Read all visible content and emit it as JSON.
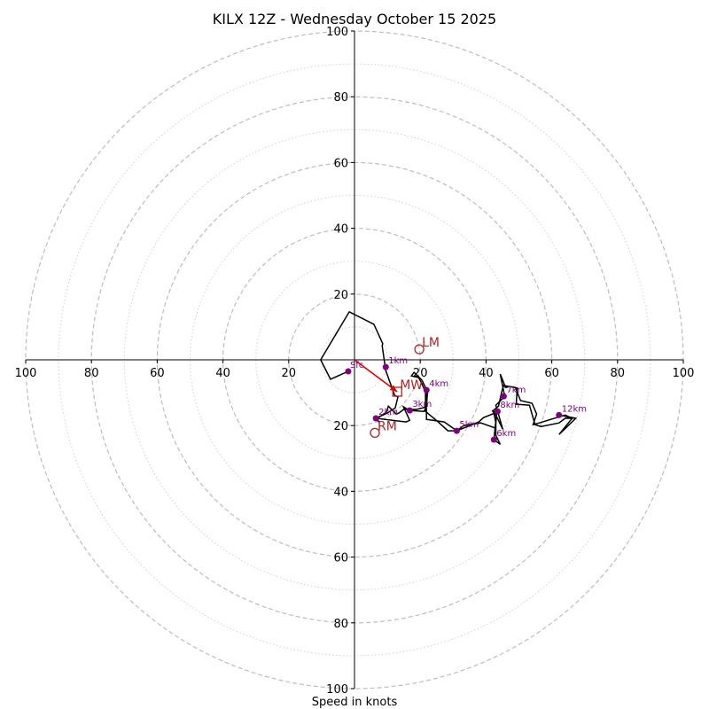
{
  "chart_data": {
    "type": "hodograph",
    "title": "KILX 12Z - Wednesday October 15 2025",
    "xlabel": "Speed in knots",
    "range": [
      -100,
      100
    ],
    "major_rings": [
      20,
      40,
      60,
      80,
      100
    ],
    "minor_rings": [
      10,
      30,
      50,
      70,
      90
    ],
    "x_ticks": [
      {
        "value": -100,
        "label": "100"
      },
      {
        "value": -80,
        "label": "80"
      },
      {
        "value": -60,
        "label": "60"
      },
      {
        "value": -40,
        "label": "40"
      },
      {
        "value": -20,
        "label": "20"
      },
      {
        "value": 20,
        "label": "20"
      },
      {
        "value": 40,
        "label": "40"
      },
      {
        "value": 60,
        "label": "60"
      },
      {
        "value": 80,
        "label": "80"
      },
      {
        "value": 100,
        "label": "100"
      }
    ],
    "y_ticks": [
      {
        "value": 100,
        "label": "100"
      },
      {
        "value": 80,
        "label": "80"
      },
      {
        "value": 60,
        "label": "60"
      },
      {
        "value": 40,
        "label": "40"
      },
      {
        "value": 20,
        "label": "20"
      },
      {
        "value": -20,
        "label": "20"
      },
      {
        "value": -40,
        "label": "40"
      },
      {
        "value": -60,
        "label": "60"
      },
      {
        "value": -80,
        "label": "80"
      },
      {
        "value": -100,
        "label": "100"
      }
    ],
    "hodograph_trace": [
      [
        -1.9,
        -3.5
      ],
      [
        -7.3,
        -5.9
      ],
      [
        -10.3,
        0
      ],
      [
        -1.6,
        14.6
      ],
      [
        5.9,
        10.8
      ],
      [
        8.6,
        4.9
      ],
      [
        8.4,
        4.3
      ],
      [
        9.5,
        -3.2
      ],
      [
        12.2,
        -10.8
      ],
      [
        13.2,
        -11.3
      ],
      [
        12.4,
        -14.6
      ],
      [
        10,
        -16.2
      ],
      [
        6.5,
        -17.8
      ],
      [
        15.7,
        -18.9
      ],
      [
        16.8,
        -18.4
      ],
      [
        14.9,
        -14.3
      ],
      [
        16.8,
        -15.4
      ],
      [
        21.1,
        -15.7
      ],
      [
        21.6,
        -14.9
      ],
      [
        21.6,
        -9.5
      ],
      [
        21.9,
        -15.7
      ],
      [
        21.9,
        -18.1
      ],
      [
        27.3,
        -18.9
      ],
      [
        31.1,
        -21.6
      ],
      [
        37.8,
        -18.9
      ],
      [
        39.2,
        -17.6
      ],
      [
        42.7,
        -16.2
      ],
      [
        45.1,
        -21.1
      ],
      [
        43,
        -13.8
      ],
      [
        45.7,
        -11.1
      ],
      [
        44.3,
        -4.3
      ],
      [
        45.1,
        -6.2
      ],
      [
        45.9,
        -8.4
      ],
      [
        47.3,
        -8.1
      ],
      [
        49.5,
        -8.6
      ],
      [
        49.2,
        -13.5
      ],
      [
        53.2,
        -13.8
      ],
      [
        54.9,
        -19.7
      ],
      [
        56.7,
        -20.3
      ],
      [
        62.2,
        -19.2
      ],
      [
        64.1,
        -17.8
      ],
      [
        66.5,
        -17.8
      ],
      [
        63.5,
        -17
      ],
      [
        67.3,
        -17.8
      ],
      [
        62.2,
        -22.7
      ],
      [
        66.2,
        -17.8
      ],
      [
        64.1,
        -16.8
      ],
      [
        62.4,
        -17.3
      ],
      [
        56.2,
        -19.2
      ],
      [
        54.3,
        -19.7
      ],
      [
        55.4,
        -16.5
      ],
      [
        54,
        -13.2
      ],
      [
        50.5,
        -12.4
      ],
      [
        48.9,
        -8.4
      ],
      [
        47,
        -8.1
      ],
      [
        45.4,
        -7.8
      ],
      [
        44.9,
        -9.2
      ],
      [
        43.8,
        -14.1
      ],
      [
        42.2,
        -15.4
      ],
      [
        43,
        -18.6
      ],
      [
        42.4,
        -24.3
      ],
      [
        44.3,
        -25.7
      ],
      [
        43,
        -23
      ],
      [
        43,
        -19.2
      ],
      [
        42.4,
        -16.2
      ],
      [
        41.9,
        -15.4
      ],
      [
        43.2,
        -16.2
      ],
      [
        43,
        -19.5
      ],
      [
        43,
        -20.8
      ],
      [
        38.4,
        -19.2
      ],
      [
        33.2,
        -20
      ],
      [
        31.1,
        -21.6
      ],
      [
        28.4,
        -21.6
      ],
      [
        25.1,
        -18.6
      ],
      [
        21.6,
        -15.7
      ],
      [
        21.9,
        -10.5
      ],
      [
        20.5,
        -7.3
      ],
      [
        19.5,
        -5.4
      ],
      [
        17.3,
        -4.9
      ],
      [
        18.1,
        -3.8
      ],
      [
        20.5,
        -6.2
      ],
      [
        22.2,
        -9.7
      ],
      [
        21.9,
        -14.3
      ],
      [
        18.9,
        -15.1
      ],
      [
        14.9,
        -15.1
      ],
      [
        13.5,
        -16.2
      ],
      [
        12.7,
        -16.5
      ],
      [
        10.3,
        -14.1
      ],
      [
        9.7,
        -15.9
      ],
      [
        6.5,
        -18.1
      ],
      [
        6.8,
        -17.8
      ],
      [
        7.6,
        -19.2
      ]
    ],
    "height_markers": [
      {
        "label": "Sfc",
        "u": -1.9,
        "v": -3.5
      },
      {
        "label": "1km",
        "u": 9.5,
        "v": -2.2
      },
      {
        "label": "2km",
        "u": 6.5,
        "v": -17.8
      },
      {
        "label": "3km",
        "u": 16.8,
        "v": -15.4
      },
      {
        "label": "4km",
        "u": 21.9,
        "v": -9.2
      },
      {
        "label": "5km",
        "u": 31.1,
        "v": -21.6
      },
      {
        "label": "6km",
        "u": 42.4,
        "v": -24.3
      },
      {
        "label": "7km",
        "u": 45.4,
        "v": -11.1
      },
      {
        "label": "8km",
        "u": 43.5,
        "v": -15.7
      },
      {
        "label": "12km",
        "u": 62.2,
        "v": -16.8
      }
    ],
    "storm_motion": [
      {
        "label": "LM",
        "u": 19.7,
        "v": 3.2,
        "shape": "circle"
      },
      {
        "label": "MW",
        "u": 13,
        "v": -9.7,
        "shape": "square"
      },
      {
        "label": "RM",
        "u": 6.2,
        "v": -22.2,
        "shape": "circle"
      }
    ],
    "shear_vector": {
      "from": [
        0,
        0
      ],
      "to": [
        13,
        -9.7
      ]
    },
    "colors": {
      "trace": "#000000",
      "markers": "#800080",
      "storm_motion": "#b22222",
      "shear": "#e00000",
      "grid": "#bdbdbd"
    }
  }
}
